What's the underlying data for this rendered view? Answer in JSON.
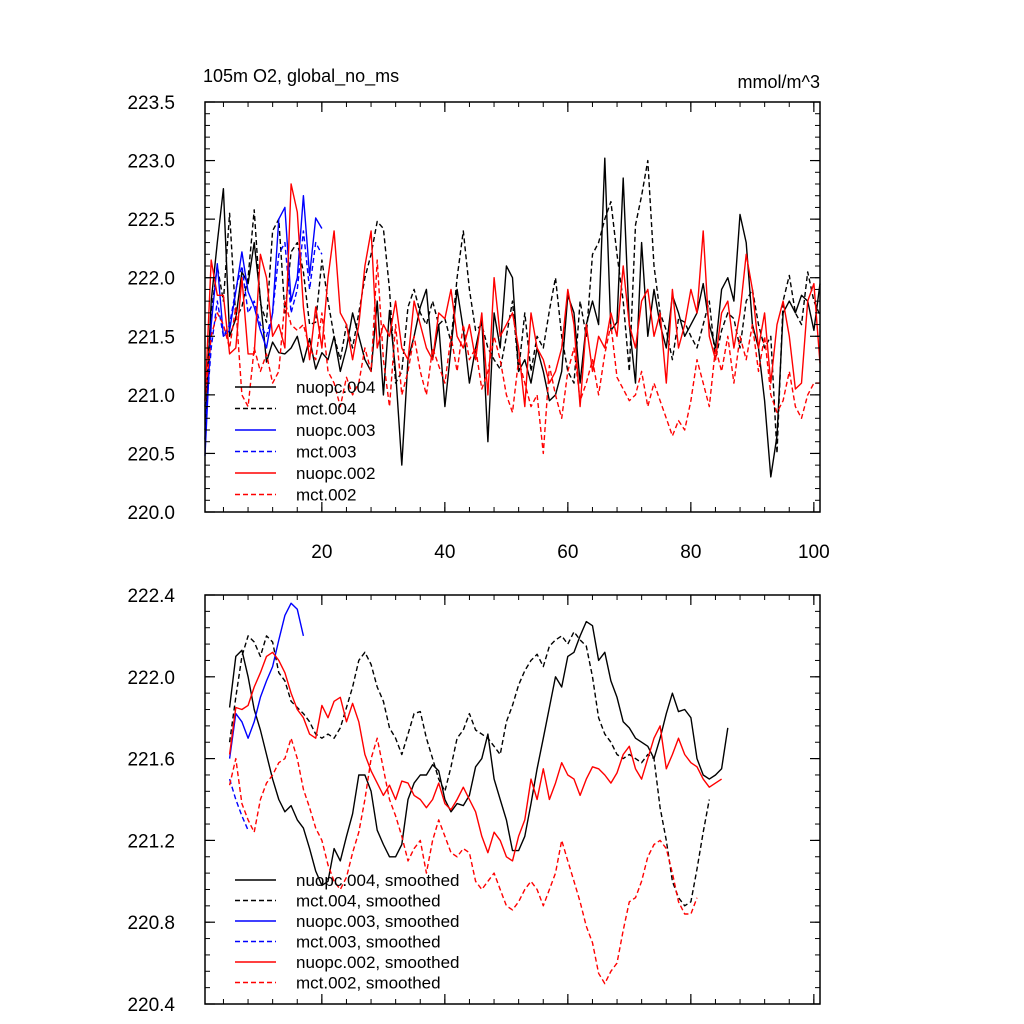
{
  "chart_data": [
    {
      "type": "line",
      "title": "105m O2, global_no_ms",
      "units_label": "mmol/m^3",
      "xlabel": "",
      "ylabel": "",
      "xlim": [
        1,
        101
      ],
      "ylim": [
        220.0,
        223.5
      ],
      "xticks": [
        20,
        40,
        60,
        80,
        100
      ],
      "yticks": [
        220.0,
        220.5,
        221.0,
        221.5,
        222.0,
        222.5,
        223.0,
        223.5
      ],
      "ytick_labels": [
        "220.0",
        "220.5",
        "221.0",
        "221.5",
        "222.0",
        "222.5",
        "223.0",
        "223.5"
      ],
      "xtick_labels": [
        "20",
        "40",
        "60",
        "80",
        "100"
      ],
      "legend_position": "lower-left",
      "series": [
        {
          "name": "nuopc.004",
          "color": "#000000",
          "dash": false,
          "x_start": 1,
          "values": [
            220.62,
            221.8,
            222.3,
            222.76,
            221.5,
            221.65,
            222.05,
            221.95,
            222.3,
            221.82,
            221.28,
            221.45,
            221.36,
            221.35,
            221.4,
            221.5,
            221.28,
            221.48,
            221.22,
            221.36,
            221.3,
            221.5,
            221.2,
            221.4,
            221.7,
            221.5,
            221.3,
            221.2,
            221.8,
            221.0,
            221.72,
            221.2,
            220.4,
            221.3,
            221.5,
            221.75,
            221.9,
            221.3,
            221.6,
            220.9,
            221.4,
            221.9,
            221.56,
            221.1,
            221.4,
            221.65,
            220.6,
            221.7,
            221.4,
            222.1,
            222.0,
            221.2,
            221.3,
            221.1,
            221.4,
            221.2,
            220.95,
            221.0,
            221.2,
            221.85,
            221.7,
            221.1,
            221.6,
            221.8,
            221.6,
            223.02,
            221.55,
            221.62,
            222.85,
            221.6,
            221.1,
            222.3,
            221.5,
            221.9,
            221.6,
            221.4,
            221.85,
            221.7,
            221.5,
            221.6,
            221.7,
            221.95,
            221.6,
            221.4,
            221.9,
            222.0,
            221.8,
            222.54,
            222.3,
            221.6,
            221.4,
            220.95,
            220.3,
            220.65,
            221.7,
            221.8,
            221.7,
            221.85,
            221.8,
            221.55,
            221.95
          ]
        },
        {
          "name": "mct.004",
          "color": "#000000",
          "dash": true,
          "x_start": 1,
          "values": [
            220.9,
            221.7,
            222.1,
            221.8,
            222.55,
            221.65,
            221.75,
            222.0,
            222.58,
            221.78,
            221.62,
            222.4,
            222.5,
            221.7,
            222.22,
            222.3,
            222.05,
            221.6,
            221.62,
            222.15,
            221.8,
            221.5,
            221.3,
            221.6,
            221.4,
            221.7,
            222.0,
            222.2,
            222.48,
            222.42,
            221.9,
            221.1,
            221.2,
            221.75,
            221.9,
            221.7,
            221.6,
            221.8,
            221.6,
            221.65,
            221.45,
            222.0,
            222.4,
            221.9,
            221.55,
            221.6,
            221.4,
            221.3,
            221.22,
            221.5,
            221.8,
            221.2,
            221.7,
            221.2,
            221.5,
            221.4,
            221.72,
            222.0,
            221.5,
            221.2,
            221.1,
            221.8,
            221.5,
            222.2,
            222.3,
            222.5,
            222.65,
            222.2,
            221.8,
            221.2,
            222.45,
            222.7,
            223.0,
            222.1,
            221.7,
            221.55,
            221.3,
            221.65,
            221.62,
            221.5,
            221.4,
            221.6,
            221.8,
            221.3,
            221.55,
            221.7,
            221.65,
            221.4,
            221.8,
            221.9,
            221.6,
            221.4,
            221.5,
            220.5,
            221.8,
            222.02,
            221.7,
            221.6,
            222.05,
            221.8,
            221.68
          ]
        },
        {
          "name": "nuopc.003",
          "color": "#0000ff",
          "dash": false,
          "x_start": 1,
          "values": [
            220.48,
            221.6,
            222.12,
            221.5,
            221.55,
            221.88,
            222.22,
            221.88,
            221.75,
            221.55,
            221.4,
            221.7,
            222.5,
            222.6,
            221.8,
            222.0,
            222.7,
            222.02,
            222.51,
            222.42
          ]
        },
        {
          "name": "mct.003",
          "color": "#0000ff",
          "dash": true,
          "x_start": 1,
          "values": [
            220.7,
            221.4,
            221.8,
            221.5,
            221.6,
            221.9,
            222.1,
            221.7,
            221.8,
            221.6,
            221.5,
            221.7,
            222.2,
            222.3,
            221.7,
            221.9,
            222.4,
            221.9,
            222.3,
            222.2
          ]
        },
        {
          "name": "nuopc.002",
          "color": "#ff0000",
          "dash": false,
          "x_start": 1,
          "values": [
            220.95,
            222.15,
            221.85,
            221.85,
            221.35,
            221.4,
            222.0,
            221.35,
            221.35,
            222.2,
            222.0,
            221.5,
            221.6,
            221.4,
            222.8,
            222.56,
            221.75,
            221.3,
            221.75,
            221.4,
            222.0,
            222.4,
            221.7,
            221.6,
            221.3,
            221.6,
            222.1,
            222.4,
            221.4,
            221.6,
            221.5,
            221.8,
            221.4,
            221.3,
            221.8,
            221.6,
            221.4,
            221.3,
            221.7,
            221.65,
            221.9,
            221.5,
            221.4,
            221.6,
            221.3,
            221.7,
            221.0,
            222.0,
            221.5,
            221.6,
            221.7,
            221.4,
            220.9,
            221.7,
            221.4,
            221.3,
            221.1,
            221.2,
            221.4,
            221.9,
            221.6,
            220.9,
            221.6,
            221.2,
            221.5,
            221.4,
            221.7,
            221.5,
            222.1,
            221.6,
            221.4,
            221.8,
            221.9,
            221.5,
            221.7,
            221.1,
            221.9,
            221.4,
            221.6,
            221.9,
            221.7,
            222.4,
            221.5,
            221.3,
            221.7,
            221.8,
            221.4,
            221.7,
            222.2,
            221.9,
            221.4,
            221.7,
            221.1,
            221.6,
            221.8,
            221.5,
            221.05,
            221.1,
            221.8,
            221.95,
            221.27
          ]
        },
        {
          "name": "mct.002",
          "color": "#ff0000",
          "dash": true,
          "x_start": 1,
          "values": [
            220.95,
            221.5,
            221.7,
            221.6,
            221.4,
            221.75,
            221.0,
            220.9,
            221.4,
            221.2,
            221.35,
            221.1,
            221.2,
            221.8,
            221.6,
            221.55,
            221.6,
            221.4,
            221.3,
            221.7,
            221.2,
            221.1,
            220.9,
            221.15,
            221.0,
            221.1,
            221.4,
            221.2,
            222.15,
            221.3,
            220.9,
            221.6,
            221.0,
            221.2,
            221.5,
            221.2,
            221.0,
            221.4,
            221.25,
            221.1,
            221.5,
            221.2,
            221.6,
            221.3,
            221.4,
            221.05,
            221.2,
            221.5,
            221.3,
            221.0,
            220.85,
            221.3,
            221.1,
            220.9,
            221.0,
            220.5,
            221.25,
            221.0,
            220.8,
            221.2,
            221.4,
            220.95,
            221.1,
            221.3,
            221.0,
            221.35,
            221.6,
            221.15,
            221.05,
            220.95,
            221.0,
            221.2,
            220.9,
            221.1,
            220.95,
            220.8,
            220.65,
            220.78,
            220.7,
            220.95,
            221.3,
            221.1,
            220.9,
            221.4,
            221.2,
            221.5,
            221.1,
            221.5,
            221.3,
            221.6,
            221.2,
            221.5,
            221.0,
            220.85,
            220.95,
            221.2,
            220.9,
            220.8,
            221.0,
            221.1,
            221.1
          ]
        }
      ]
    },
    {
      "type": "line",
      "title": "",
      "xlabel": "",
      "ylabel": "",
      "xlim": [
        1,
        101
      ],
      "ylim": [
        220.4,
        222.4
      ],
      "xticks": [
        20,
        40,
        60,
        80,
        100
      ],
      "yticks": [
        220.4,
        220.8,
        221.2,
        221.6,
        222.0,
        222.4
      ],
      "ytick_labels": [
        "220.4",
        "220.8",
        "221.2",
        "221.6",
        "222.0",
        "222.4"
      ],
      "legend_position": "lower-left",
      "series": [
        {
          "name": "nuopc.004, smoothed",
          "color": "#000000",
          "dash": false,
          "x_start": 5,
          "values": [
            221.85,
            222.1,
            222.13,
            222.0,
            221.84,
            221.74,
            221.62,
            221.5,
            221.4,
            221.34,
            221.37,
            221.3,
            221.26,
            221.16,
            221.05,
            220.98,
            221.0,
            221.16,
            221.1,
            221.22,
            221.33,
            221.52,
            221.52,
            221.44,
            221.25,
            221.18,
            221.12,
            221.12,
            221.18,
            221.4,
            221.48,
            221.52,
            221.52,
            221.57,
            221.54,
            221.4,
            221.34,
            221.38,
            221.37,
            221.42,
            221.56,
            221.6,
            221.72,
            221.5,
            221.4,
            221.3,
            221.15,
            221.15,
            221.22,
            221.38,
            221.55,
            221.7,
            221.85,
            222.0,
            221.95,
            222.1,
            222.12,
            222.2,
            222.27,
            222.25,
            222.08,
            222.12,
            221.98,
            221.9,
            221.78,
            221.75,
            221.7,
            221.68,
            221.66,
            221.6,
            221.7,
            221.82,
            221.92,
            221.83,
            221.84,
            221.8,
            221.6,
            221.52,
            221.5,
            221.52,
            221.55,
            221.75
          ]
        },
        {
          "name": "mct.004, smoothed",
          "color": "#000000",
          "dash": true,
          "x_start": 5,
          "values": [
            221.68,
            221.9,
            222.1,
            222.2,
            222.17,
            222.1,
            222.2,
            222.17,
            222.02,
            221.98,
            221.88,
            221.85,
            221.82,
            221.78,
            221.72,
            221.7,
            221.72,
            221.7,
            221.75,
            221.85,
            221.95,
            222.08,
            222.12,
            222.06,
            221.95,
            221.88,
            221.75,
            221.7,
            221.62,
            221.72,
            221.82,
            221.83,
            221.7,
            221.6,
            221.5,
            221.44,
            221.56,
            221.7,
            221.74,
            221.82,
            221.74,
            221.72,
            221.7,
            221.66,
            221.62,
            221.78,
            221.86,
            221.96,
            222.03,
            222.08,
            222.11,
            222.05,
            222.15,
            222.18,
            222.2,
            222.16,
            222.22,
            222.18,
            222.15,
            222.0,
            221.8,
            221.72,
            221.68,
            221.62,
            221.6,
            221.62,
            221.6,
            221.58,
            221.62,
            221.6,
            221.36,
            221.2,
            221.0,
            220.92,
            220.88,
            220.9,
            221.06,
            221.24,
            221.4
          ]
        },
        {
          "name": "nuopc.003, smoothed",
          "color": "#0000ff",
          "dash": false,
          "x_start": 5,
          "values": [
            221.6,
            221.82,
            221.78,
            221.7,
            221.78,
            221.9,
            221.98,
            222.05,
            222.18,
            222.3,
            222.36,
            222.33,
            222.2
          ]
        },
        {
          "name": "mct.003, smoothed",
          "color": "#0000ff",
          "dash": true,
          "x_start": 5,
          "values": [
            221.5,
            221.4,
            221.32,
            221.25
          ]
        },
        {
          "name": "nuopc.002, smoothed",
          "color": "#ff0000",
          "dash": false,
          "x_start": 5,
          "values": [
            221.62,
            221.85,
            221.84,
            221.86,
            221.95,
            222.02,
            222.1,
            222.12,
            222.08,
            222.02,
            221.92,
            221.84,
            221.8,
            221.72,
            221.7,
            221.86,
            221.8,
            221.88,
            221.9,
            221.78,
            221.87,
            221.78,
            221.62,
            221.54,
            221.48,
            221.42,
            221.47,
            221.4,
            221.49,
            221.48,
            221.42,
            221.4,
            221.36,
            221.4,
            221.48,
            221.38,
            221.35,
            221.4,
            221.46,
            221.4,
            221.34,
            221.22,
            221.14,
            221.24,
            221.2,
            221.12,
            221.1,
            221.22,
            221.3,
            221.5,
            221.4,
            221.55,
            221.4,
            221.48,
            221.58,
            221.52,
            221.5,
            221.42,
            221.5,
            221.56,
            221.55,
            221.52,
            221.48,
            221.53,
            221.62,
            221.66,
            221.55,
            221.5,
            221.6,
            221.7,
            221.76,
            221.55,
            221.62,
            221.7,
            221.62,
            221.58,
            221.56,
            221.5,
            221.46,
            221.48,
            221.5
          ]
        },
        {
          "name": "mct.002, smoothed",
          "color": "#ff0000",
          "dash": true,
          "x_start": 5,
          "values": [
            221.47,
            221.6,
            221.38,
            221.3,
            221.24,
            221.4,
            221.48,
            221.52,
            221.58,
            221.6,
            221.7,
            221.6,
            221.45,
            221.36,
            221.26,
            221.2,
            221.08,
            221.0,
            220.96,
            221.02,
            221.14,
            221.24,
            221.4,
            221.6,
            221.7,
            221.55,
            221.4,
            221.32,
            221.22,
            221.1,
            221.16,
            221.2,
            221.04,
            221.2,
            221.3,
            221.22,
            221.14,
            221.12,
            221.16,
            221.14,
            221.0,
            220.96,
            221.0,
            221.04,
            220.96,
            220.88,
            220.86,
            220.9,
            220.96,
            221.0,
            220.96,
            220.88,
            220.96,
            221.04,
            221.2,
            221.1,
            221.0,
            220.9,
            220.78,
            220.7,
            220.55,
            220.5,
            220.56,
            220.6,
            220.76,
            220.9,
            220.92,
            221.0,
            221.12,
            221.18,
            221.2,
            221.16,
            221.04,
            220.9,
            220.84,
            220.84,
            220.92
          ]
        }
      ]
    }
  ]
}
